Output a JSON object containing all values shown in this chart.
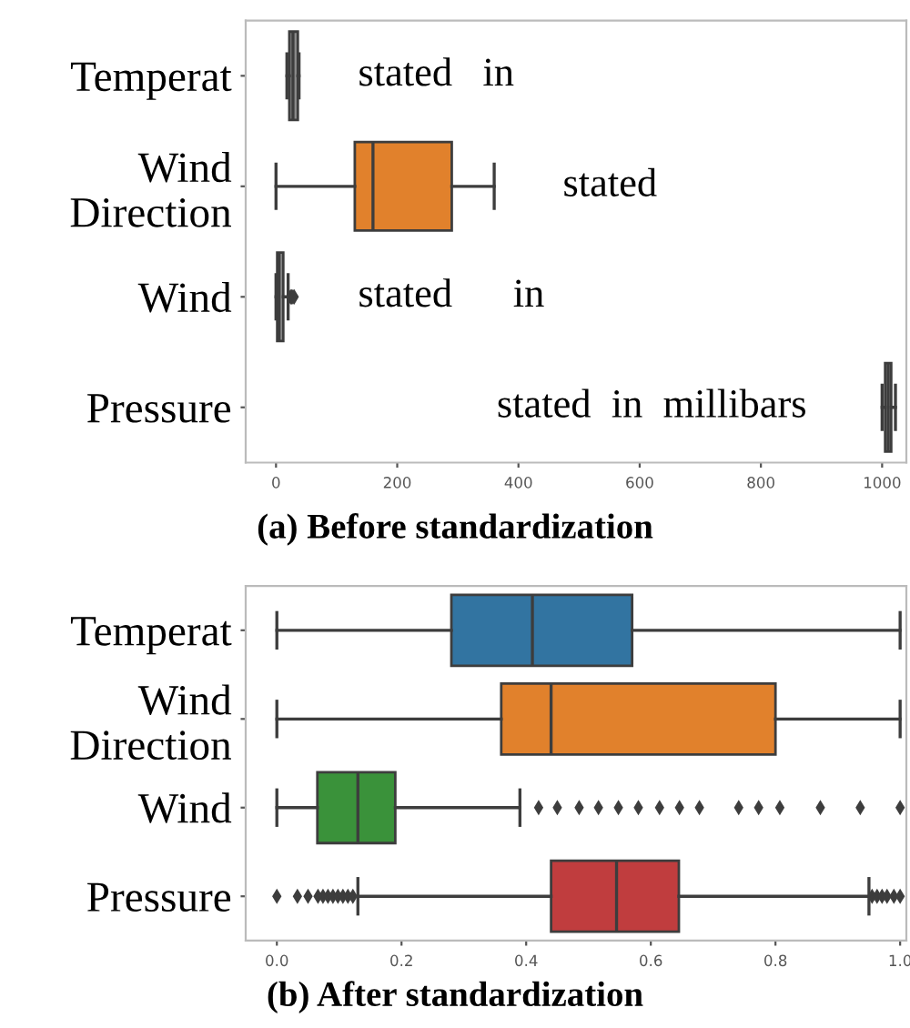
{
  "chart_data": [
    {
      "type": "box",
      "title": "(a) Before standardization",
      "orientation": "horizontal",
      "categories": [
        "Temperat",
        "Wind Direction",
        "Wind",
        "Pressure"
      ],
      "colors": [
        "#8c8c8c",
        "#e1812c",
        "#8c8c8c",
        "#8c8c8c"
      ],
      "boxes": [
        {
          "low": 18,
          "q1": 22,
          "median": 28,
          "q3": 36,
          "high": 38
        },
        {
          "low": 0,
          "q1": 130,
          "median": 160,
          "q3": 290,
          "high": 360
        },
        {
          "low": 0,
          "q1": 2,
          "median": 5,
          "q3": 12,
          "high": 20,
          "outliers": [
            24,
            26,
            28,
            30
          ]
        },
        {
          "low": 1000,
          "q1": 1005,
          "median": 1010,
          "q3": 1015,
          "high": 1022
        }
      ],
      "xlim": [
        -50,
        1040
      ],
      "xticks": [
        0,
        200,
        400,
        600,
        800,
        1000
      ],
      "grid": false,
      "annotations": [
        "stated   in",
        "stated",
        "stated      in",
        "stated  in  millibars"
      ]
    },
    {
      "type": "box",
      "title": "(b) After standardization",
      "orientation": "horizontal",
      "categories": [
        "Temperat",
        "Wind Direction",
        "Wind",
        "Pressure"
      ],
      "colors": [
        "#3274a1",
        "#e1812c",
        "#3a923a",
        "#c03d3e"
      ],
      "boxes": [
        {
          "low": 0,
          "q1": 0.28,
          "median": 0.41,
          "q3": 0.57,
          "high": 1.0
        },
        {
          "low": 0,
          "q1": 0.36,
          "median": 0.44,
          "q3": 0.8,
          "high": 1.0
        },
        {
          "low": 0,
          "q1": 0.065,
          "median": 0.13,
          "q3": 0.19,
          "high": 0.39,
          "outliers": [
            0.42,
            0.45,
            0.485,
            0.516,
            0.548,
            0.58,
            0.614,
            0.646,
            0.678,
            0.741,
            0.773,
            0.807,
            0.872,
            0.936,
            1.0
          ]
        },
        {
          "low": 0.13,
          "q1": 0.44,
          "median": 0.545,
          "q3": 0.645,
          "high": 0.95,
          "outliers": [
            0.0,
            0.033,
            0.05,
            0.066,
            0.074,
            0.082,
            0.09,
            0.098,
            0.106,
            0.114,
            0.122,
            0.955,
            0.963,
            0.971,
            0.979,
            0.99,
            1.0
          ]
        }
      ],
      "xlim": [
        -0.05,
        1.01
      ],
      "xticks": [
        {
          "value": 0,
          "label": "0.0"
        },
        {
          "value": 0.2,
          "label": "0.2"
        },
        {
          "value": 0.4,
          "label": "0.4"
        },
        {
          "value": 0.6,
          "label": "0.6"
        },
        {
          "value": 0.8,
          "label": "0.8"
        },
        {
          "value": 1.0,
          "label": "1.0"
        }
      ],
      "grid": false
    }
  ]
}
